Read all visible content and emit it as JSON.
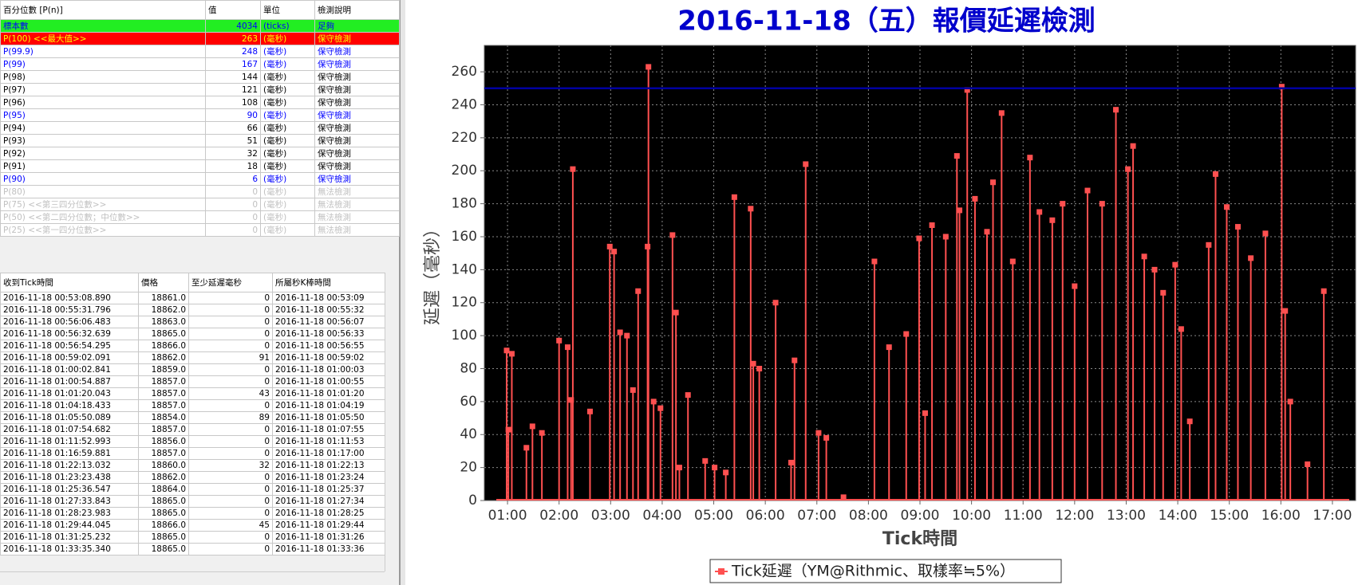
{
  "stats_table": {
    "columns": [
      "百分位數 [P(n)]",
      "值",
      "單位",
      "檢測說明"
    ],
    "rows": [
      {
        "cells": [
          "標本數",
          4034,
          "(ticks)",
          "足夠"
        ],
        "color": "#0000ff",
        "background": "#22ee22",
        "bold": false
      },
      {
        "cells": [
          "P(100)  <<最大值>>",
          263,
          "(毫秒)",
          "保守檢測"
        ],
        "color": "#ffff00",
        "background": "#ff0000",
        "bold": true
      },
      {
        "cells": [
          "P(99.9)",
          248,
          "(毫秒)",
          "保守檢測"
        ],
        "color": "#0000ff",
        "bold": true
      },
      {
        "cells": [
          "P(99)",
          167,
          "(毫秒)",
          "保守檢測"
        ],
        "color": "#0000ff",
        "bold": true
      },
      {
        "cells": [
          "P(98)",
          144,
          "(毫秒)",
          "保守檢測"
        ],
        "color": "#000000",
        "bold": false
      },
      {
        "cells": [
          "P(97)",
          121,
          "(毫秒)",
          "保守檢測"
        ],
        "color": "#000000",
        "bold": false
      },
      {
        "cells": [
          "P(96)",
          108,
          "(毫秒)",
          "保守檢測"
        ],
        "color": "#000000",
        "bold": false
      },
      {
        "cells": [
          "P(95)",
          90,
          "(毫秒)",
          "保守檢測"
        ],
        "color": "#0000ff",
        "bold": true
      },
      {
        "cells": [
          "P(94)",
          66,
          "(毫秒)",
          "保守檢測"
        ],
        "color": "#000000",
        "bold": false
      },
      {
        "cells": [
          "P(93)",
          51,
          "(毫秒)",
          "保守檢測"
        ],
        "color": "#000000",
        "bold": false
      },
      {
        "cells": [
          "P(92)",
          32,
          "(毫秒)",
          "保守檢測"
        ],
        "color": "#000000",
        "bold": false
      },
      {
        "cells": [
          "P(91)",
          18,
          "(毫秒)",
          "保守檢測"
        ],
        "color": "#000000",
        "bold": false
      },
      {
        "cells": [
          "P(90)",
          6,
          "(毫秒)",
          "保守檢測"
        ],
        "color": "#0000ff",
        "bold": true
      },
      {
        "cells": [
          "P(80)",
          0,
          "(毫秒)",
          "無法檢測"
        ],
        "color": "#c0c0c0",
        "bold": false
      },
      {
        "cells": [
          "P(75)  <<第三四分位數>>",
          0,
          "(毫秒)",
          "無法檢測"
        ],
        "color": "#c0c0c0",
        "bold": false
      },
      {
        "cells": [
          "P(50)  <<第二四分位數；中位數>>",
          0,
          "(毫秒)",
          "無法檢測"
        ],
        "color": "#c0c0c0",
        "bold": false
      },
      {
        "cells": [
          "P(25)  <<第一四分位數>>",
          0,
          "(毫秒)",
          "無法檢測"
        ],
        "color": "#c0c0c0",
        "bold": false
      }
    ]
  },
  "ticks_table": {
    "columns": [
      "收到Tick時間",
      "價格",
      "至少延遲毫秒",
      "所屬秒K棒時間"
    ],
    "rows": [
      [
        "2016-11-18 00:53:08.890",
        "18861.0",
        0,
        "2016-11-18 00:53:09"
      ],
      [
        "2016-11-18 00:55:31.796",
        "18862.0",
        0,
        "2016-11-18 00:55:32"
      ],
      [
        "2016-11-18 00:56:06.483",
        "18863.0",
        0,
        "2016-11-18 00:56:07"
      ],
      [
        "2016-11-18 00:56:32.639",
        "18865.0",
        0,
        "2016-11-18 00:56:33"
      ],
      [
        "2016-11-18 00:56:54.295",
        "18866.0",
        0,
        "2016-11-18 00:56:55"
      ],
      [
        "2016-11-18 00:59:02.091",
        "18862.0",
        91,
        "2016-11-18 00:59:02"
      ],
      [
        "2016-11-18 01:00:02.841",
        "18859.0",
        0,
        "2016-11-18 01:00:03"
      ],
      [
        "2016-11-18 01:00:54.887",
        "18857.0",
        0,
        "2016-11-18 01:00:55"
      ],
      [
        "2016-11-18 01:01:20.043",
        "18857.0",
        43,
        "2016-11-18 01:01:20"
      ],
      [
        "2016-11-18 01:04:18.433",
        "18857.0",
        0,
        "2016-11-18 01:04:19"
      ],
      [
        "2016-11-18 01:05:50.089",
        "18854.0",
        89,
        "2016-11-18 01:05:50"
      ],
      [
        "2016-11-18 01:07:54.682",
        "18857.0",
        0,
        "2016-11-18 01:07:55"
      ],
      [
        "2016-11-18 01:11:52.993",
        "18856.0",
        0,
        "2016-11-18 01:11:53"
      ],
      [
        "2016-11-18 01:16:59.881",
        "18857.0",
        0,
        "2016-11-18 01:17:00"
      ],
      [
        "2016-11-18 01:22:13.032",
        "18860.0",
        32,
        "2016-11-18 01:22:13"
      ],
      [
        "2016-11-18 01:23:23.438",
        "18862.0",
        0,
        "2016-11-18 01:23:24"
      ],
      [
        "2016-11-18 01:25:36.547",
        "18864.0",
        0,
        "2016-11-18 01:25:37"
      ],
      [
        "2016-11-18 01:27:33.843",
        "18865.0",
        0,
        "2016-11-18 01:27:34"
      ],
      [
        "2016-11-18 01:28:23.983",
        "18865.0",
        0,
        "2016-11-18 01:28:25"
      ],
      [
        "2016-11-18 01:29:44.045",
        "18866.0",
        45,
        "2016-11-18 01:29:44"
      ],
      [
        "2016-11-18 01:31:25.232",
        "18865.0",
        0,
        "2016-11-18 01:31:26"
      ],
      [
        "2016-11-18 01:33:35.340",
        "18865.0",
        0,
        "2016-11-18 01:33:36"
      ]
    ]
  },
  "chart_data": {
    "type": "line",
    "stems": true,
    "title": "2016-11-18（五）報價延遲檢測",
    "x_label": "Tick時間",
    "y_label": "延遲（毫秒）",
    "background": "#000000",
    "grid": true,
    "legend": "bottom",
    "reference_line": {
      "value": 250,
      "color": "#0000a0"
    },
    "x": [
      "00:59",
      "01:01",
      "01:05",
      "01:22",
      "01:29",
      "01:40",
      "02:00",
      "02:10",
      "02:14",
      "02:16",
      "02:36",
      "02:59",
      "03:04",
      "03:11",
      "03:19",
      "03:26",
      "03:32",
      "03:43",
      "03:44",
      "03:50",
      "03:58",
      "04:12",
      "04:16",
      "04:20",
      "04:30",
      "04:50",
      "05:01",
      "05:14",
      "05:24",
      "05:43",
      "05:46",
      "05:53",
      "06:12",
      "06:30",
      "06:34",
      "06:47",
      "07:02",
      "07:11",
      "07:31",
      "08:07",
      "08:24",
      "08:44",
      "08:59",
      "09:06",
      "09:14",
      "09:30",
      "09:43",
      "09:46",
      "09:55",
      "10:04",
      "10:18",
      "10:25",
      "10:35",
      "10:48",
      "11:08",
      "11:19",
      "11:34",
      "11:46",
      "12:00",
      "12:15",
      "12:32",
      "12:48",
      "13:02",
      "13:08",
      "13:21",
      "13:33",
      "13:43",
      "13:57",
      "14:04",
      "14:14",
      "14:36",
      "14:44",
      "14:57",
      "15:10",
      "15:25",
      "15:42",
      "16:01",
      "16:05",
      "16:11",
      "16:31",
      "16:50"
    ],
    "series": [
      {
        "name": "Tick延遲（YM@Rithmic、取樣率≒5%）",
        "color": "#ff5050",
        "values": [
          91,
          43,
          89,
          32,
          45,
          41,
          97,
          93,
          61,
          201,
          54,
          154,
          151,
          102,
          100,
          67,
          127,
          154,
          263,
          60,
          56,
          161,
          114,
          20,
          64,
          24,
          20,
          17,
          184,
          177,
          83,
          80,
          120,
          23,
          85,
          204,
          41,
          38,
          2,
          145,
          93,
          101,
          159,
          53,
          167,
          160,
          209,
          176,
          249,
          183,
          163,
          193,
          235,
          145,
          208,
          175,
          170,
          180,
          130,
          188,
          180,
          237,
          201,
          215,
          148,
          140,
          126,
          143,
          104,
          48,
          155,
          198,
          178,
          166,
          147,
          162,
          251,
          115,
          60,
          22,
          127
        ]
      }
    ],
    "xlim": [
      "00:33",
      "17:27"
    ],
    "xticks": [
      "01:00",
      "02:00",
      "03:00",
      "04:00",
      "05:00",
      "06:00",
      "07:00",
      "08:00",
      "09:00",
      "10:00",
      "11:00",
      "12:00",
      "13:00",
      "14:00",
      "15:00",
      "16:00",
      "17:00"
    ],
    "ylim": [
      0,
      276
    ],
    "yticks": [
      0,
      20,
      40,
      60,
      80,
      100,
      120,
      140,
      160,
      180,
      200,
      220,
      240,
      260
    ]
  }
}
